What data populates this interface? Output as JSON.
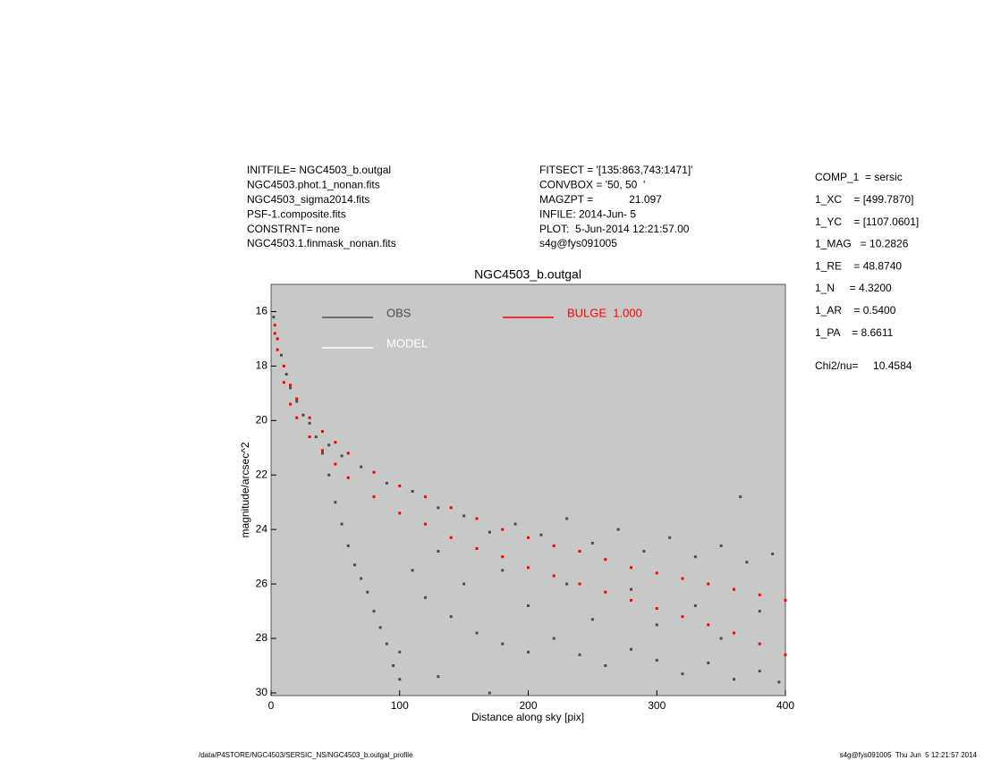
{
  "chart_data": {
    "type": "scatter",
    "title": "NGC4503_b.outgal",
    "x_label": "Distance along sky [pix]",
    "y_label": "magnitude/arcsec^2",
    "xlim": [
      0,
      400
    ],
    "xticks": [
      0,
      100,
      200,
      300,
      400
    ],
    "ylim": [
      30.1,
      15
    ],
    "yticks": [
      16,
      18,
      20,
      22,
      24,
      26,
      28,
      30
    ],
    "background": "#c8c8c8",
    "series": [
      {
        "name": "OBS",
        "color": "#4d4d4d",
        "x": [
          2,
          5,
          8,
          12,
          15,
          20,
          25,
          30,
          35,
          40,
          45,
          50,
          55,
          60,
          65,
          70,
          75,
          80,
          85,
          90,
          95,
          100,
          45,
          55,
          70,
          90,
          110,
          130,
          150,
          170,
          190,
          210,
          230,
          250,
          270,
          290,
          310,
          330,
          350,
          370,
          390,
          365,
          120,
          140,
          160,
          180,
          200,
          220,
          240,
          260,
          280,
          300,
          320,
          340,
          360,
          380,
          395,
          110,
          150,
          200,
          250,
          300,
          350,
          130,
          180,
          230,
          280,
          330,
          380,
          100,
          130,
          170
        ],
        "values": [
          16.2,
          17.0,
          17.6,
          18.3,
          18.8,
          19.3,
          19.8,
          20.1,
          20.6,
          21.2,
          22.0,
          23.0,
          23.8,
          24.6,
          25.3,
          25.8,
          26.3,
          27.0,
          27.6,
          28.2,
          29.0,
          29.5,
          20.9,
          21.3,
          21.7,
          22.3,
          22.6,
          23.2,
          23.5,
          24.1,
          23.8,
          24.2,
          23.6,
          24.5,
          24.0,
          24.8,
          24.3,
          25.0,
          24.6,
          25.2,
          24.9,
          22.8,
          26.5,
          27.2,
          27.8,
          28.2,
          28.5,
          28.0,
          28.6,
          29.0,
          28.4,
          28.8,
          29.3,
          28.9,
          29.5,
          29.2,
          29.6,
          25.5,
          26.0,
          26.8,
          27.3,
          27.5,
          28.0,
          24.8,
          25.5,
          26.0,
          26.2,
          26.8,
          27.0,
          28.5,
          29.4,
          30.0
        ]
      },
      {
        "name": "MODEL",
        "color": "#ffffff"
      },
      {
        "name": "BULGE  1.000",
        "color": "#ff0000",
        "x": [
          3,
          5,
          10,
          15,
          20,
          30,
          40,
          50,
          60,
          80,
          100,
          120,
          140,
          160,
          180,
          200,
          220,
          240,
          260,
          280,
          300,
          320,
          340,
          360,
          380,
          400,
          3,
          5,
          10,
          15,
          20,
          30,
          40,
          50,
          60,
          80,
          100,
          120,
          140,
          160,
          180,
          200,
          220,
          240,
          260,
          280,
          300,
          320,
          340,
          360,
          380,
          400
        ],
        "values": [
          16.5,
          17.0,
          18.0,
          18.7,
          19.2,
          19.9,
          20.4,
          20.8,
          21.2,
          21.9,
          22.4,
          22.8,
          23.2,
          23.6,
          24.0,
          24.3,
          24.6,
          24.8,
          25.1,
          25.4,
          25.6,
          25.8,
          26.0,
          26.2,
          26.4,
          26.6,
          16.8,
          17.4,
          18.6,
          19.4,
          19.9,
          20.6,
          21.1,
          21.6,
          22.1,
          22.8,
          23.4,
          23.8,
          24.3,
          24.7,
          25.0,
          25.4,
          25.7,
          26.0,
          26.3,
          26.6,
          26.9,
          27.2,
          27.5,
          27.8,
          28.2,
          28.6
        ]
      }
    ]
  },
  "header_left": [
    "INITFILE= NGC4503_b.outgal",
    "NGC4503.phot.1_nonan.fits",
    "NGC4503_sigma2014.fits",
    "PSF-1.composite.fits",
    "CONSTRNT= none",
    "NGC4503.1.finmask_nonan.fits"
  ],
  "header_mid": [
    "FITSECT = '[135:863,743:1471]'",
    "CONVBOX = '50, 50  '",
    "MAGZPT =            21.097",
    "INFILE: 2014-Jun- 5",
    "PLOT:  5-Jun-2014 12:21:57.00",
    "s4g@fys091005"
  ],
  "params": [
    "COMP_1  = sersic",
    "1_XC    = [499.7870]",
    "1_YC    = [1107.0601]",
    "1_MAG   = 10.2826",
    "1_RE    = 48.8740",
    "1_N     = 4.3200",
    "1_AR    = 0.5400",
    "1_PA    = 8.6611"
  ],
  "chi2": "Chi2/nu=     10.4584",
  "footer_left": "/data/P4STORE/NGC4503/SERSIC_NS/NGC4503_b.outgal_profile",
  "footer_right": "s4g@fys091005  Thu Jun  5 12:21:57 2014"
}
